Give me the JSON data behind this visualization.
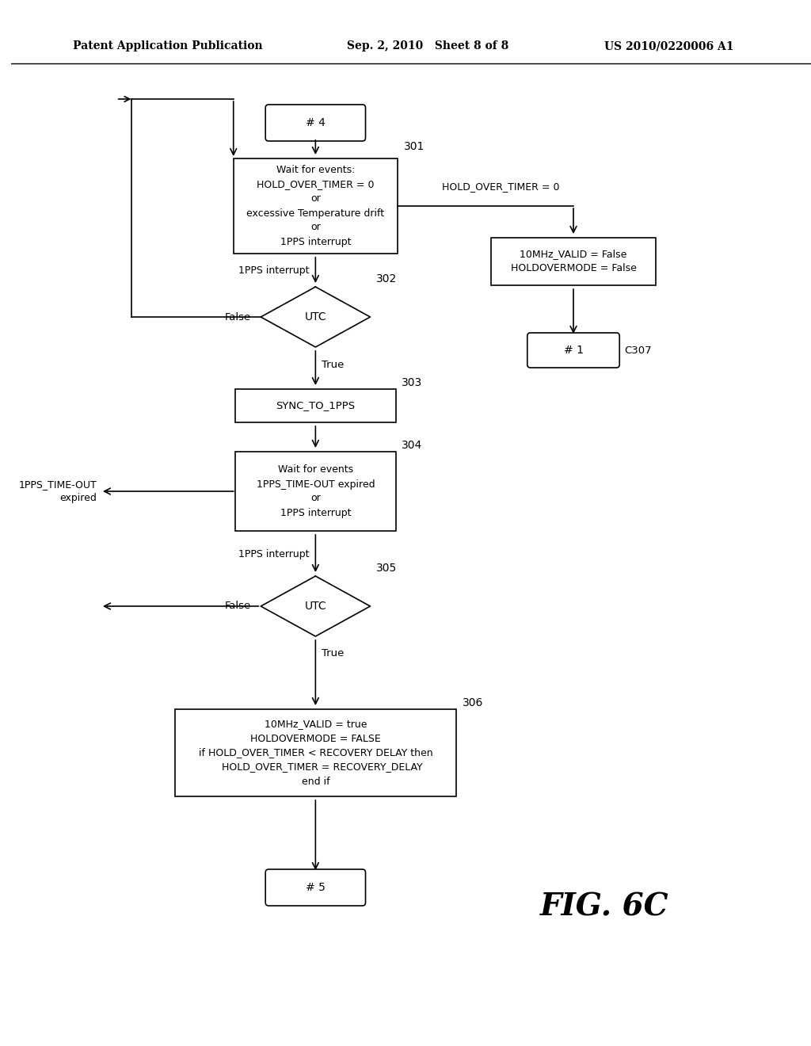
{
  "title_left": "Patent Application Publication",
  "title_mid": "Sep. 2, 2010   Sheet 8 of 8",
  "title_right": "US 2010/0220006 A1",
  "fig_label": "FIG. 6C",
  "background_color": "#ffffff"
}
